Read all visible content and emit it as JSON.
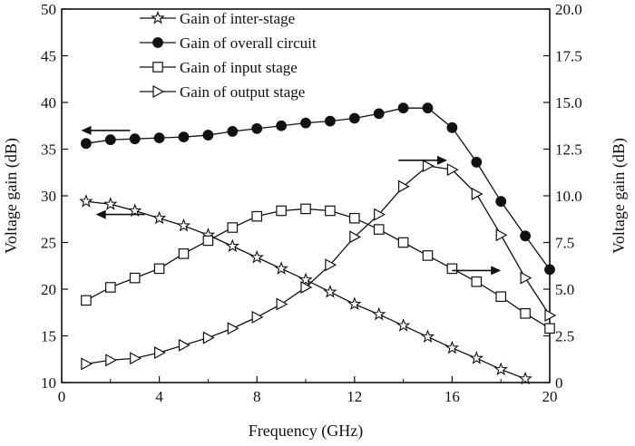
{
  "chart_data": {
    "type": "line",
    "title": "",
    "xlabel": "Frequency (GHz)",
    "ylabel_left": "Voltage gain (dB)",
    "ylabel_right": "Voltage gain (dB)",
    "xlim": [
      0,
      20
    ],
    "ylim_left": [
      10,
      50
    ],
    "ylim_right": [
      0,
      20
    ],
    "x_ticks": [
      "0",
      "4",
      "8",
      "12",
      "16",
      "20"
    ],
    "y_left_ticks": [
      "10",
      "15",
      "20",
      "25",
      "30",
      "35",
      "40",
      "45",
      "50"
    ],
    "y_right_ticks": [
      "0",
      "2.5",
      "5.0",
      "7.5",
      "10.0",
      "12.5",
      "15.0",
      "17.5",
      "20.0"
    ],
    "grid": false,
    "legend_position": "top-center",
    "series": [
      {
        "name": "Gain of inter-stage",
        "marker": "star",
        "axis": "left",
        "x": [
          1,
          2,
          3,
          4,
          5,
          6,
          7,
          8,
          9,
          10,
          11,
          12,
          13,
          14,
          15,
          16,
          17,
          18,
          19
        ],
        "y": [
          29.4,
          29.1,
          28.4,
          27.6,
          26.8,
          25.8,
          24.6,
          23.4,
          22.2,
          21.0,
          19.7,
          18.4,
          17.3,
          16.1,
          14.9,
          13.7,
          12.6,
          11.4,
          10.4
        ]
      },
      {
        "name": "Gain of overall circuit",
        "marker": "filled-circle",
        "axis": "left",
        "x": [
          1,
          2,
          3,
          4,
          5,
          6,
          7,
          8,
          9,
          10,
          11,
          12,
          13,
          14,
          15,
          16,
          17,
          18,
          19,
          20
        ],
        "y": [
          35.6,
          36.0,
          36.1,
          36.2,
          36.3,
          36.5,
          36.9,
          37.2,
          37.5,
          37.8,
          38.0,
          38.3,
          38.8,
          39.4,
          39.4,
          37.3,
          33.6,
          29.4,
          25.7,
          22.1
        ]
      },
      {
        "name": "Gain of input stage",
        "marker": "open-square",
        "axis": "right",
        "x": [
          1,
          2,
          3,
          4,
          5,
          6,
          7,
          8,
          9,
          10,
          11,
          12,
          13,
          14,
          15,
          16,
          17,
          18,
          19,
          20
        ],
        "y": [
          4.4,
          5.1,
          5.6,
          6.1,
          6.9,
          7.6,
          8.3,
          8.9,
          9.2,
          9.3,
          9.2,
          8.8,
          8.2,
          7.5,
          6.8,
          6.1,
          5.4,
          4.6,
          3.7,
          2.9
        ]
      },
      {
        "name": "Gain of output stage",
        "marker": "open-triangle-right",
        "axis": "right",
        "x": [
          1,
          2,
          3,
          4,
          5,
          6,
          7,
          8,
          9,
          10,
          11,
          12,
          13,
          14,
          15,
          16,
          17,
          18,
          19,
          20
        ],
        "y": [
          1.0,
          1.2,
          1.3,
          1.6,
          2.0,
          2.4,
          2.9,
          3.5,
          4.2,
          5.1,
          6.3,
          7.8,
          9.0,
          10.5,
          11.6,
          11.4,
          10.1,
          7.9,
          5.6,
          3.6
        ]
      }
    ],
    "annotations": [
      {
        "type": "arrow",
        "direction": "left",
        "axis": "left",
        "x_from": 2.8,
        "x_to": 0.8,
        "y": 37
      },
      {
        "type": "arrow",
        "direction": "left",
        "axis": "left",
        "x_from": 3.4,
        "x_to": 1.4,
        "y": 28
      },
      {
        "type": "arrow",
        "direction": "right",
        "axis": "right",
        "x_from": 13.8,
        "x_to": 15.8,
        "y": 11.9
      },
      {
        "type": "arrow",
        "direction": "right",
        "axis": "right",
        "x_from": 16.0,
        "x_to": 18.0,
        "y": 6.0
      }
    ]
  }
}
